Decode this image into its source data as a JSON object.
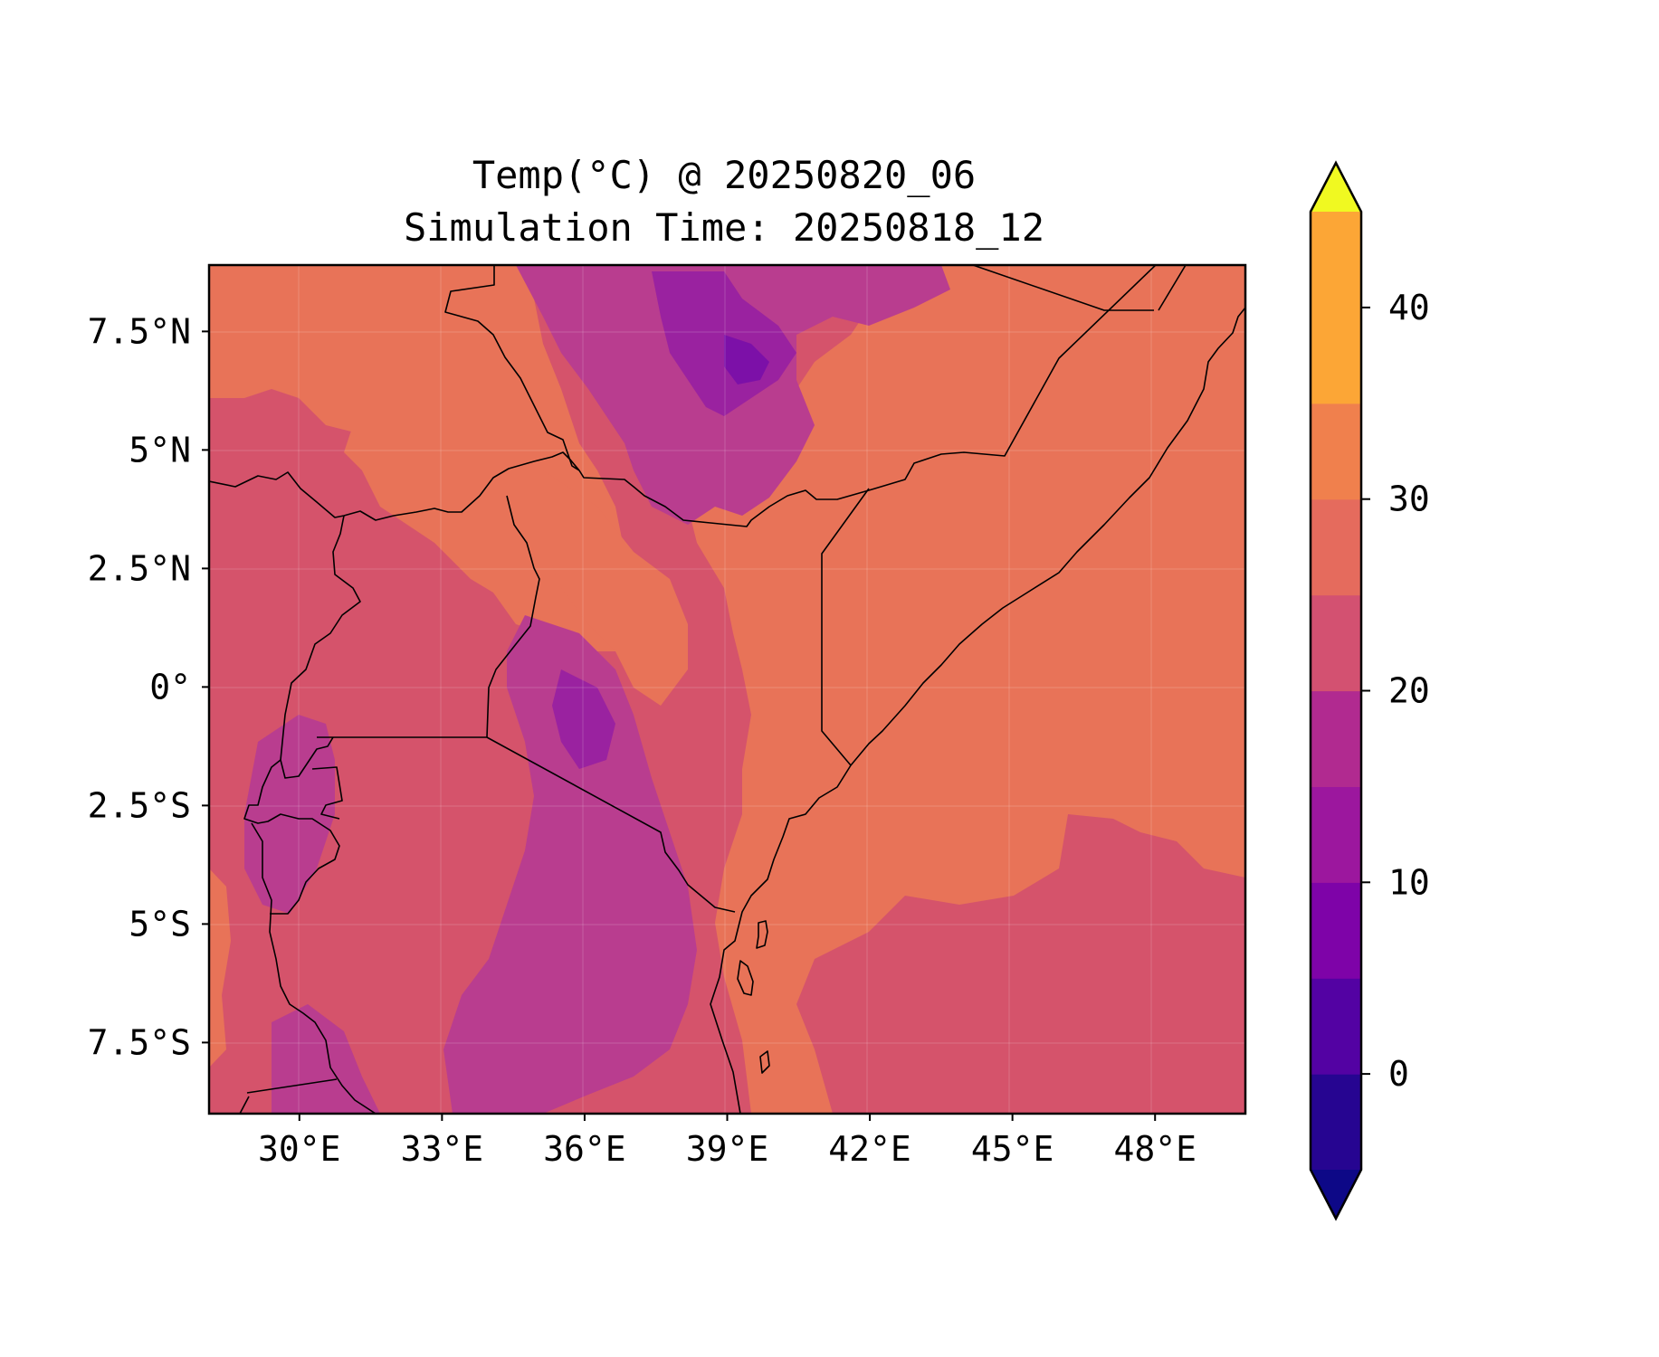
{
  "figure": {
    "title_line1": "Temp(°C) @ 20250820_06",
    "title_line2": "Simulation Time: 20250818_12"
  },
  "map": {
    "x_ticks": [
      "30°E",
      "33°E",
      "36°E",
      "39°E",
      "42°E",
      "45°E",
      "48°E"
    ],
    "y_ticks": [
      "7.5°N",
      "5°N",
      "2.5°N",
      "0°",
      "2.5°S",
      "5°S",
      "7.5°S"
    ],
    "x_tick_values": [
      30,
      33,
      36,
      39,
      42,
      45,
      48
    ],
    "y_tick_values": [
      7.5,
      5,
      2.5,
      0,
      -2.5,
      -5,
      -7.5
    ],
    "lon_range": [
      28.1,
      49.9
    ],
    "lat_range": [
      -9.0,
      8.9
    ],
    "field": "temperature",
    "units": "°C"
  },
  "colorbar": {
    "ticks": [
      "0",
      "10",
      "20",
      "30",
      "40"
    ],
    "tick_values": [
      0,
      10,
      20,
      30,
      40
    ],
    "range": [
      -5,
      45
    ],
    "level_step": 5,
    "extend": "both",
    "colormap": "plasma",
    "level_colors": [
      "#0d0887",
      "#260591",
      "#5302a3",
      "#7e03a8",
      "#9c179e",
      "#b12a90",
      "#d35171",
      "#e56b5d",
      "#f0804d",
      "#fca636",
      "#f0f921"
    ]
  },
  "colors": {
    "warm_lowland": "#e87358",
    "mid": "#d5536b",
    "cool_highland": "#b93d8f",
    "cold": "#9a22a0",
    "very_cold": "#7c10a8",
    "border": "#000000"
  }
}
